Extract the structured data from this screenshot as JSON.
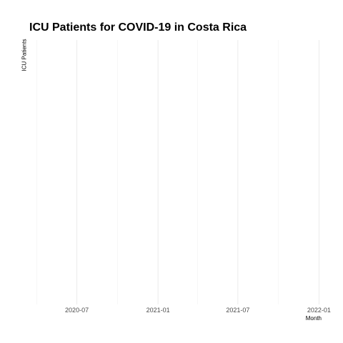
{
  "chart_data": {
    "type": "line",
    "title": "ICU Patients for COVID-19 in Costa Rica",
    "xlabel": "Month",
    "ylabel": "ICU Patients",
    "x_ticks": [
      "2020-07",
      "2021-01",
      "2021-07",
      "2022-01"
    ],
    "x_tick_dates": [
      "2020-07-01",
      "2021-01-01",
      "2021-07-01",
      "2022-01-01"
    ],
    "x_minor_dates": [
      "2020-04-01",
      "2020-10-01",
      "2021-04-01",
      "2021-10-01"
    ],
    "xlim": [
      "2020-03-20",
      "2022-01-01"
    ],
    "grid": true,
    "series": []
  }
}
